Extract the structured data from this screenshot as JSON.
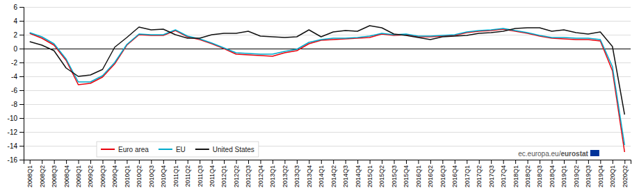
{
  "chart_data": {
    "type": "line",
    "categories": [
      "2008Q1",
      "2008Q2",
      "2008Q3",
      "2008Q4",
      "2009Q1",
      "2009Q2",
      "2009Q3",
      "2009Q4",
      "2010Q1",
      "2010Q2",
      "2010Q3",
      "2010Q4",
      "2011Q1",
      "2011Q2",
      "2011Q3",
      "2011Q4",
      "2012Q1",
      "2012Q2",
      "2012Q3",
      "2012Q4",
      "2013Q1",
      "2013Q2",
      "2013Q3",
      "2013Q4",
      "2014Q1",
      "2014Q2",
      "2014Q3",
      "2014Q4",
      "2015Q1",
      "2015Q2",
      "2015Q3",
      "2015Q4",
      "2016Q1",
      "2016Q2",
      "2016Q3",
      "2016Q4",
      "2017Q1",
      "2017Q2",
      "2017Q3",
      "2017Q4",
      "2018Q1",
      "2018Q2",
      "2018Q3",
      "2018Q4",
      "2019Q1",
      "2019Q2",
      "2019Q3",
      "2019Q4",
      "2020Q1",
      "2020Q2"
    ],
    "series": [
      {
        "name": "Euro area",
        "color": "#e8000b",
        "values": [
          2.2,
          1.5,
          0.5,
          -1.7,
          -5.2,
          -5.0,
          -4.1,
          -2.2,
          0.5,
          2.0,
          1.9,
          1.9,
          2.6,
          1.7,
          1.3,
          0.7,
          0.0,
          -0.8,
          -0.9,
          -1.0,
          -1.1,
          -0.6,
          -0.3,
          0.7,
          1.2,
          1.3,
          1.4,
          1.5,
          1.6,
          2.1,
          1.9,
          2.0,
          1.7,
          1.7,
          1.8,
          1.9,
          2.3,
          2.5,
          2.6,
          2.8,
          2.5,
          2.2,
          1.8,
          1.5,
          1.4,
          1.3,
          1.3,
          1.1,
          -3.2,
          -14.9
        ]
      },
      {
        "name": "EU",
        "color": "#00aacc",
        "values": [
          2.3,
          1.7,
          0.7,
          -1.5,
          -4.8,
          -4.8,
          -3.9,
          -2.0,
          0.6,
          2.1,
          2.0,
          2.0,
          2.7,
          1.8,
          1.4,
          0.8,
          0.1,
          -0.6,
          -0.7,
          -0.8,
          -0.8,
          -0.4,
          -0.1,
          0.9,
          1.3,
          1.5,
          1.5,
          1.6,
          1.8,
          2.2,
          2.0,
          2.1,
          1.8,
          1.8,
          1.9,
          2.0,
          2.4,
          2.6,
          2.7,
          2.9,
          2.6,
          2.3,
          1.9,
          1.6,
          1.6,
          1.5,
          1.5,
          1.3,
          -2.6,
          -13.9
        ]
      },
      {
        "name": "United States",
        "color": "#111111",
        "values": [
          1.0,
          0.5,
          -0.3,
          -2.8,
          -4.0,
          -3.8,
          -3.0,
          0.2,
          1.6,
          3.1,
          2.7,
          2.8,
          2.0,
          1.5,
          1.5,
          2.0,
          2.2,
          2.2,
          2.5,
          1.8,
          1.7,
          1.6,
          1.7,
          2.7,
          1.7,
          2.4,
          2.6,
          2.5,
          3.3,
          3.0,
          2.1,
          1.9,
          1.6,
          1.3,
          1.7,
          1.8,
          1.9,
          2.2,
          2.3,
          2.5,
          2.9,
          3.0,
          3.0,
          2.5,
          2.7,
          2.3,
          2.1,
          2.4,
          0.3,
          -9.5
        ]
      }
    ],
    "ylim": [
      -16,
      6
    ],
    "yticks": [
      -16,
      -14,
      -12,
      -10,
      -8,
      -6,
      -4,
      -2,
      0,
      2,
      4,
      6
    ],
    "grid": true,
    "legend": "lower left",
    "annotations": [
      "ec.europa.eu/",
      "eurostat"
    ]
  }
}
